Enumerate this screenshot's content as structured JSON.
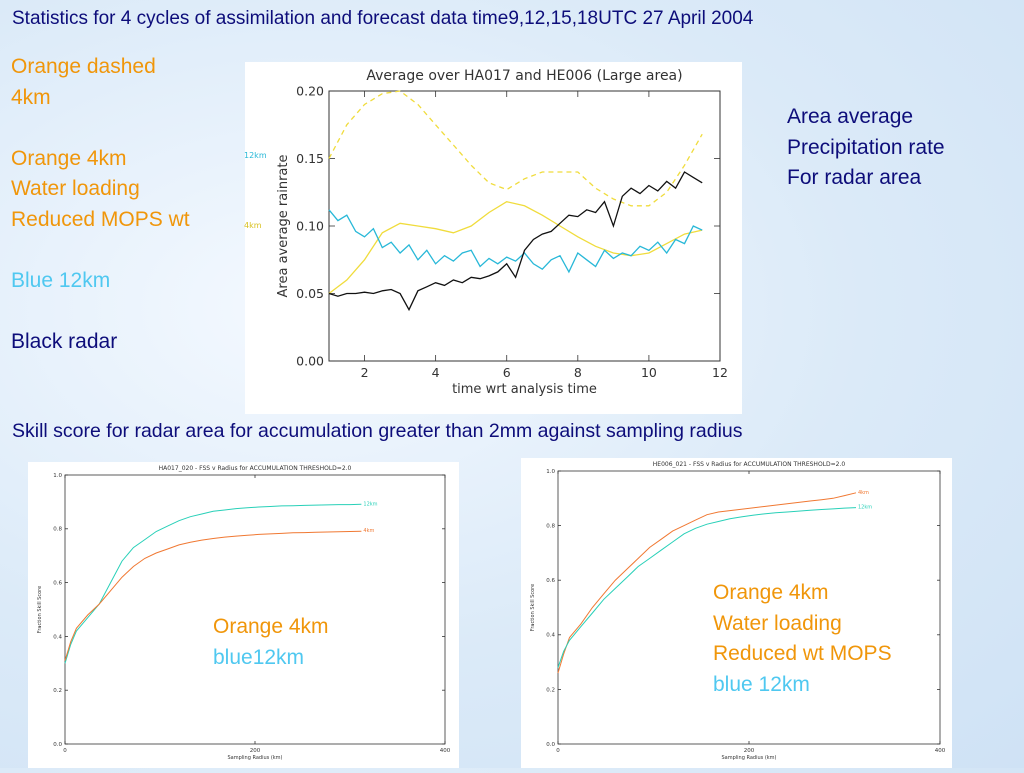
{
  "slide": {
    "title": "Statistics for 4 cycles of assimilation and forecast data time9,12,15,18UTC 27 April 2004",
    "left_notes": {
      "line1": "Orange dashed",
      "line2": "4km",
      "line3": "Orange 4km",
      "line4": "Water loading",
      "line5": "Reduced MOPS wt",
      "line6": "Blue 12km",
      "line7": "Black radar"
    },
    "right_notes": {
      "line1": "Area average",
      "line2": "Precipitation rate",
      "line3": "For radar area"
    },
    "subtitle": "Skill score for radar area for accumulation greater than 2mm against sampling radius",
    "bottom_left_notes": {
      "line1": "Orange 4km",
      "line2": "blue12km"
    },
    "bottom_right_notes": {
      "line1": "Orange 4km",
      "line2": "Water loading",
      "line3": "Reduced wt MOPS",
      "line4": "blue 12km"
    }
  },
  "colors": {
    "orange": "#f0960a",
    "blue": "#4fc8f0",
    "navy": "#0d0d7a",
    "yellow": "#f0dc3c",
    "cyan": "#28b8d8",
    "black": "#111111"
  },
  "chart_data": [
    {
      "type": "line",
      "title": "Average over HA017 and HE006 (Large area)",
      "xlabel": "time wrt analysis time",
      "ylabel": "Area average rainrate",
      "xlim": [
        1,
        12
      ],
      "ylim": [
        0,
        0.2
      ],
      "xticks": [
        "2",
        "4",
        "6",
        "8",
        "10",
        "12"
      ],
      "yticks": [
        "0.00",
        "0.05",
        "0.10",
        "0.15",
        "0.20"
      ],
      "side_labels": {
        "a": "12km",
        "b": "4km"
      },
      "series": [
        {
          "style": "dashed",
          "color": "#f0dc3c",
          "x": [
            1,
            1.5,
            2,
            2.5,
            3,
            3.5,
            4,
            4.5,
            5,
            5.5,
            6,
            6.5,
            7,
            7.5,
            8,
            8.5,
            9,
            9.5,
            10,
            10.5,
            11,
            11.5
          ],
          "y": [
            0.15,
            0.175,
            0.19,
            0.198,
            0.2,
            0.19,
            0.175,
            0.16,
            0.145,
            0.132,
            0.127,
            0.135,
            0.14,
            0.14,
            0.14,
            0.128,
            0.12,
            0.115,
            0.115,
            0.125,
            0.145,
            0.168
          ]
        },
        {
          "style": "solid",
          "color": "#f0dc3c",
          "x": [
            1,
            1.5,
            2,
            2.5,
            3,
            3.5,
            4,
            4.5,
            5,
            5.5,
            6,
            6.5,
            7,
            7.5,
            8,
            8.5,
            9,
            9.5,
            10,
            10.5,
            11,
            11.5
          ],
          "y": [
            0.05,
            0.06,
            0.075,
            0.095,
            0.102,
            0.1,
            0.098,
            0.095,
            0.1,
            0.11,
            0.118,
            0.115,
            0.108,
            0.1,
            0.092,
            0.085,
            0.08,
            0.078,
            0.08,
            0.087,
            0.094,
            0.097
          ]
        },
        {
          "style": "solid",
          "color": "#28b8d8",
          "x": [
            1,
            1.25,
            1.5,
            1.75,
            2,
            2.25,
            2.5,
            2.75,
            3,
            3.25,
            3.5,
            3.75,
            4,
            4.25,
            4.5,
            4.75,
            5,
            5.25,
            5.5,
            5.75,
            6,
            6.25,
            6.5,
            6.75,
            7,
            7.25,
            7.5,
            7.75,
            8,
            8.25,
            8.5,
            8.75,
            9,
            9.25,
            9.5,
            9.75,
            10,
            10.25,
            10.5,
            10.75,
            11,
            11.25,
            11.5
          ],
          "y": [
            0.112,
            0.104,
            0.108,
            0.096,
            0.092,
            0.098,
            0.084,
            0.088,
            0.08,
            0.086,
            0.075,
            0.082,
            0.072,
            0.078,
            0.074,
            0.08,
            0.082,
            0.07,
            0.076,
            0.072,
            0.077,
            0.074,
            0.08,
            0.072,
            0.068,
            0.075,
            0.078,
            0.066,
            0.08,
            0.075,
            0.07,
            0.082,
            0.076,
            0.08,
            0.078,
            0.085,
            0.082,
            0.088,
            0.08,
            0.09,
            0.087,
            0.1,
            0.097
          ]
        },
        {
          "style": "solid",
          "color": "#111111",
          "x": [
            1,
            1.25,
            1.5,
            1.75,
            2,
            2.25,
            2.5,
            2.75,
            3,
            3.25,
            3.5,
            3.75,
            4,
            4.25,
            4.5,
            4.75,
            5,
            5.25,
            5.5,
            5.75,
            6,
            6.25,
            6.5,
            6.75,
            7,
            7.25,
            7.5,
            7.75,
            8,
            8.25,
            8.5,
            8.75,
            9,
            9.25,
            9.5,
            9.75,
            10,
            10.25,
            10.5,
            10.75,
            11,
            11.25,
            11.5
          ],
          "y": [
            0.05,
            0.048,
            0.05,
            0.05,
            0.051,
            0.05,
            0.052,
            0.053,
            0.05,
            0.038,
            0.052,
            0.055,
            0.058,
            0.056,
            0.06,
            0.058,
            0.062,
            0.061,
            0.063,
            0.066,
            0.072,
            0.062,
            0.082,
            0.09,
            0.094,
            0.096,
            0.102,
            0.108,
            0.107,
            0.112,
            0.11,
            0.118,
            0.1,
            0.122,
            0.128,
            0.124,
            0.13,
            0.126,
            0.133,
            0.128,
            0.14,
            0.136,
            0.132
          ]
        }
      ]
    },
    {
      "type": "line",
      "title": "HA017_020 - FSS v Radius for ACCUMULATION THRESHOLD=2.0",
      "xlabel": "Sampling Radius (km)",
      "ylabel": "Fraction Skill Score",
      "xlim": [
        0,
        400
      ],
      "ylim": [
        0,
        1
      ],
      "xticks": [
        "0",
        "200",
        "400"
      ],
      "yticks": [
        "0.0",
        "0.2",
        "0.4",
        "0.6",
        "0.8",
        "1.0"
      ],
      "series": [
        {
          "name": "12km",
          "color": "#28d0b8",
          "x": [
            0,
            6,
            12,
            24,
            36,
            48,
            60,
            72,
            84,
            96,
            108,
            120,
            132,
            144,
            156,
            168,
            180,
            192,
            204,
            216,
            228,
            240,
            252,
            264,
            276,
            288,
            300,
            312
          ],
          "y": [
            0.3,
            0.37,
            0.42,
            0.47,
            0.52,
            0.6,
            0.68,
            0.73,
            0.76,
            0.79,
            0.81,
            0.83,
            0.845,
            0.855,
            0.865,
            0.87,
            0.875,
            0.878,
            0.881,
            0.883,
            0.885,
            0.886,
            0.887,
            0.888,
            0.889,
            0.89,
            0.89,
            0.891
          ]
        },
        {
          "name": "4km",
          "color": "#f07832",
          "x": [
            0,
            6,
            12,
            24,
            36,
            48,
            60,
            72,
            84,
            96,
            108,
            120,
            132,
            144,
            156,
            168,
            180,
            192,
            204,
            216,
            228,
            240,
            252,
            264,
            276,
            288,
            300,
            312
          ],
          "y": [
            0.31,
            0.38,
            0.43,
            0.48,
            0.52,
            0.57,
            0.62,
            0.66,
            0.69,
            0.71,
            0.725,
            0.74,
            0.75,
            0.758,
            0.764,
            0.769,
            0.773,
            0.776,
            0.779,
            0.781,
            0.783,
            0.785,
            0.786,
            0.787,
            0.788,
            0.789,
            0.79,
            0.791
          ]
        }
      ]
    },
    {
      "type": "line",
      "title": "HE006_021 - FSS v Radius for ACCUMULATION THRESHOLD=2.0",
      "xlabel": "Sampling Radius (km)",
      "ylabel": "Fraction Skill Score",
      "xlim": [
        0,
        400
      ],
      "ylim": [
        0,
        1
      ],
      "xticks": [
        "0",
        "200",
        "400"
      ],
      "yticks": [
        "0.0",
        "0.2",
        "0.4",
        "0.6",
        "0.8",
        "1.0"
      ],
      "series": [
        {
          "name": "4km",
          "color": "#f07832",
          "x": [
            0,
            6,
            12,
            24,
            36,
            48,
            60,
            72,
            84,
            96,
            108,
            120,
            132,
            144,
            156,
            168,
            180,
            192,
            204,
            216,
            228,
            240,
            252,
            264,
            276,
            288,
            300,
            312
          ],
          "y": [
            0.26,
            0.33,
            0.39,
            0.44,
            0.5,
            0.55,
            0.6,
            0.64,
            0.68,
            0.72,
            0.75,
            0.78,
            0.8,
            0.82,
            0.84,
            0.85,
            0.855,
            0.86,
            0.865,
            0.87,
            0.875,
            0.88,
            0.885,
            0.89,
            0.895,
            0.9,
            0.91,
            0.92
          ]
        },
        {
          "name": "12km",
          "color": "#28d0b8",
          "x": [
            0,
            6,
            12,
            24,
            36,
            48,
            60,
            72,
            84,
            96,
            108,
            120,
            132,
            144,
            156,
            168,
            180,
            192,
            204,
            216,
            228,
            240,
            252,
            264,
            276,
            288,
            300,
            312
          ],
          "y": [
            0.28,
            0.34,
            0.38,
            0.43,
            0.48,
            0.53,
            0.57,
            0.61,
            0.65,
            0.68,
            0.71,
            0.74,
            0.77,
            0.79,
            0.805,
            0.815,
            0.825,
            0.832,
            0.838,
            0.843,
            0.847,
            0.85,
            0.853,
            0.856,
            0.859,
            0.861,
            0.864,
            0.866
          ]
        }
      ]
    }
  ]
}
